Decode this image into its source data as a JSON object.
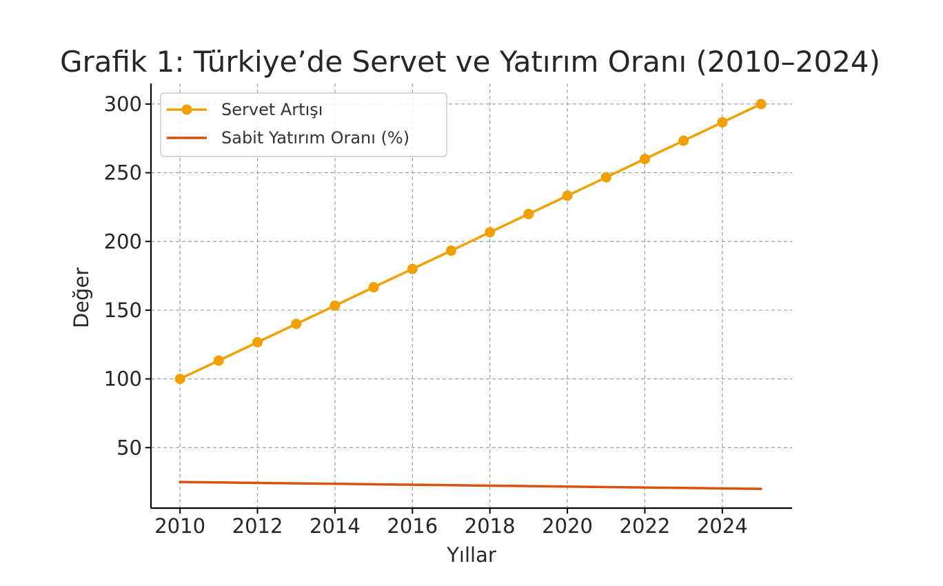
{
  "chart_data": {
    "type": "line",
    "title": "Grafik 1: Türkiye’de Servet ve Yatırım Oranı (2010–2024)",
    "xlabel": "Yıllar",
    "ylabel": "Değer",
    "x": [
      2010,
      2011,
      2012,
      2013,
      2014,
      2015,
      2016,
      2017,
      2018,
      2019,
      2020,
      2021,
      2022,
      2023,
      2024,
      2025
    ],
    "xticks": [
      2010,
      2012,
      2014,
      2016,
      2018,
      2020,
      2022,
      2024
    ],
    "yticks": [
      50,
      100,
      150,
      200,
      250,
      300
    ],
    "xlim": [
      2009.25,
      2025.8
    ],
    "ylim": [
      6,
      315
    ],
    "grid": true,
    "legend_position": "top-left",
    "series": [
      {
        "name": "Servet Artışı",
        "color": "#f0a000",
        "marker": "circle",
        "values": [
          100,
          113.3,
          126.7,
          140,
          153.3,
          166.7,
          180,
          193.3,
          206.7,
          220,
          233.3,
          246.7,
          260,
          273.3,
          286.7,
          300
        ]
      },
      {
        "name": "Sabit Yatırım Oranı (%)",
        "color": "#d9500f",
        "marker": "none",
        "values": [
          25,
          24.7,
          24.3,
          24,
          23.7,
          23.3,
          23,
          22.7,
          22.3,
          22,
          21.7,
          21.3,
          21,
          20.7,
          20.3,
          20
        ]
      }
    ]
  }
}
